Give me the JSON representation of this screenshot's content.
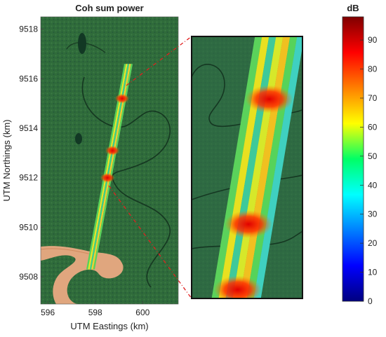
{
  "chart_data": {
    "type": "heatmap",
    "title": "Coh sum power",
    "xlabel": "UTM Eastings (km)",
    "ylabel": "UTM Northings (km)",
    "x_ticks": [
      "596",
      "598",
      "600"
    ],
    "y_ticks": [
      "9508",
      "9510",
      "9512",
      "9514",
      "9516",
      "9518"
    ],
    "xlim": [
      595.7,
      601.5
    ],
    "ylim": [
      9506.9,
      9518.5
    ],
    "colorbar": {
      "label": "dB",
      "range": [
        0,
        98
      ],
      "ticks": [
        "0",
        "10",
        "20",
        "30",
        "40",
        "50",
        "60",
        "70",
        "80",
        "90"
      ],
      "colormap": "jet"
    },
    "background": "satellite imagery",
    "flight_line": {
      "start": [
        597.8,
        9508.3
      ],
      "end": [
        599.4,
        9516.6
      ]
    },
    "hotspots_northing": [
      9515.2,
      9513.1,
      9512.0
    ],
    "inset": {
      "type": "zoom",
      "northing_range": [
        9511.5,
        9515.9
      ]
    }
  },
  "colors": {
    "forest": "#2f6b3a",
    "river": "#e0a67e",
    "inset_bg": "#2e6a47",
    "connector": "#e02020"
  }
}
